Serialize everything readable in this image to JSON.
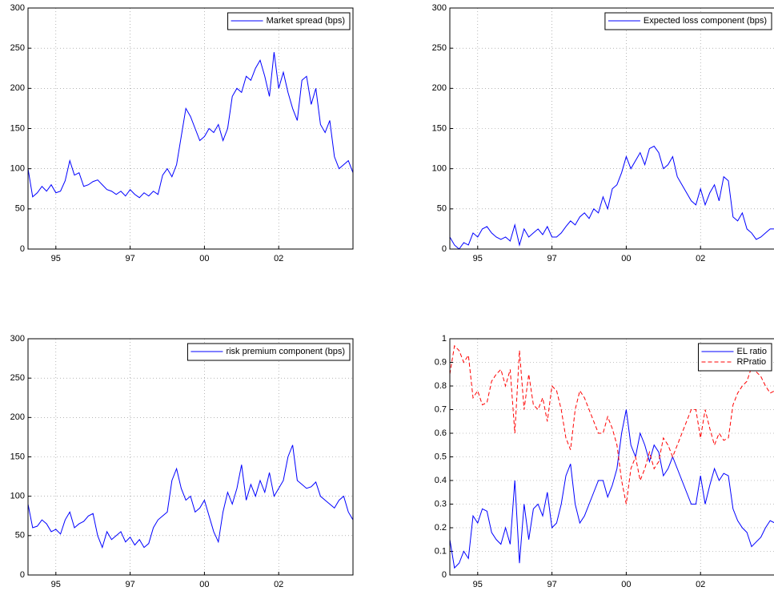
{
  "chart_data": [
    {
      "type": "line",
      "legend": "northeast",
      "grid": true,
      "xlim": [
        0,
        140
      ],
      "xticks": [
        {
          "value": 12,
          "label": "95"
        },
        {
          "value": 44,
          "label": "97"
        },
        {
          "value": 76,
          "label": "00"
        },
        {
          "value": 108,
          "label": "02"
        }
      ],
      "ylim": [
        0,
        300
      ],
      "yticks": [
        0,
        50,
        100,
        150,
        200,
        250,
        300
      ],
      "x": [
        0,
        2,
        4,
        6,
        8,
        10,
        12,
        14,
        16,
        18,
        20,
        22,
        24,
        26,
        28,
        30,
        32,
        34,
        36,
        38,
        40,
        42,
        44,
        46,
        48,
        50,
        52,
        54,
        56,
        58,
        60,
        62,
        64,
        66,
        68,
        70,
        72,
        74,
        76,
        78,
        80,
        82,
        84,
        86,
        88,
        90,
        92,
        94,
        96,
        98,
        100,
        102,
        104,
        106,
        108,
        110,
        112,
        114,
        116,
        118,
        120,
        122,
        124,
        126,
        128,
        130,
        132,
        134,
        136,
        138,
        140
      ],
      "series": [
        {
          "name": "Market spread (bps)",
          "color": "#0000ff",
          "linestyle": "solid",
          "values": [
            100,
            65,
            70,
            78,
            72,
            80,
            70,
            72,
            85,
            110,
            92,
            95,
            78,
            80,
            84,
            86,
            80,
            74,
            72,
            68,
            72,
            66,
            74,
            68,
            64,
            70,
            66,
            72,
            68,
            92,
            100,
            90,
            105,
            140,
            175,
            165,
            150,
            135,
            140,
            150,
            145,
            155,
            135,
            150,
            190,
            200,
            195,
            215,
            210,
            225,
            235,
            215,
            190,
            245,
            200,
            220,
            195,
            175,
            160,
            210,
            215,
            180,
            200,
            155,
            145,
            160,
            115,
            100,
            105,
            110,
            95
          ]
        }
      ]
    },
    {
      "type": "line",
      "legend": "northeast",
      "grid": true,
      "xlim": [
        0,
        140
      ],
      "xticks": [
        {
          "value": 12,
          "label": "95"
        },
        {
          "value": 44,
          "label": "97"
        },
        {
          "value": 76,
          "label": "00"
        },
        {
          "value": 108,
          "label": "02"
        }
      ],
      "ylim": [
        0,
        300
      ],
      "yticks": [
        0,
        50,
        100,
        150,
        200,
        250,
        300
      ],
      "x": [
        0,
        2,
        4,
        6,
        8,
        10,
        12,
        14,
        16,
        18,
        20,
        22,
        24,
        26,
        28,
        30,
        32,
        34,
        36,
        38,
        40,
        42,
        44,
        46,
        48,
        50,
        52,
        54,
        56,
        58,
        60,
        62,
        64,
        66,
        68,
        70,
        72,
        74,
        76,
        78,
        80,
        82,
        84,
        86,
        88,
        90,
        92,
        94,
        96,
        98,
        100,
        102,
        104,
        106,
        108,
        110,
        112,
        114,
        116,
        118,
        120,
        122,
        124,
        126,
        128,
        130,
        132,
        134,
        136,
        138,
        140
      ],
      "series": [
        {
          "name": "Expected loss component (bps)",
          "color": "#0000ff",
          "linestyle": "solid",
          "values": [
            15,
            5,
            0,
            8,
            5,
            20,
            15,
            25,
            28,
            20,
            15,
            12,
            15,
            10,
            30,
            5,
            25,
            15,
            20,
            25,
            18,
            28,
            15,
            15,
            20,
            28,
            35,
            30,
            40,
            45,
            38,
            50,
            45,
            65,
            50,
            75,
            80,
            95,
            115,
            100,
            110,
            120,
            105,
            125,
            128,
            120,
            100,
            105,
            115,
            90,
            80,
            70,
            60,
            55,
            75,
            55,
            70,
            80,
            60,
            90,
            85,
            40,
            35,
            45,
            25,
            20,
            12,
            15,
            20,
            25,
            25
          ]
        }
      ]
    },
    {
      "type": "line",
      "legend": "northeast",
      "grid": true,
      "xlim": [
        0,
        140
      ],
      "xticks": [
        {
          "value": 12,
          "label": "95"
        },
        {
          "value": 44,
          "label": "97"
        },
        {
          "value": 76,
          "label": "00"
        },
        {
          "value": 108,
          "label": "02"
        }
      ],
      "ylim": [
        0,
        300
      ],
      "yticks": [
        0,
        50,
        100,
        150,
        200,
        250,
        300
      ],
      "x": [
        0,
        2,
        4,
        6,
        8,
        10,
        12,
        14,
        16,
        18,
        20,
        22,
        24,
        26,
        28,
        30,
        32,
        34,
        36,
        38,
        40,
        42,
        44,
        46,
        48,
        50,
        52,
        54,
        56,
        58,
        60,
        62,
        64,
        66,
        68,
        70,
        72,
        74,
        76,
        78,
        80,
        82,
        84,
        86,
        88,
        90,
        92,
        94,
        96,
        98,
        100,
        102,
        104,
        106,
        108,
        110,
        112,
        114,
        116,
        118,
        120,
        122,
        124,
        126,
        128,
        130,
        132,
        134,
        136,
        138,
        140
      ],
      "series": [
        {
          "name": "risk premium component (bps)",
          "color": "#0000ff",
          "linestyle": "solid",
          "values": [
            90,
            60,
            62,
            70,
            65,
            55,
            58,
            52,
            70,
            80,
            60,
            65,
            68,
            75,
            78,
            50,
            35,
            55,
            45,
            50,
            55,
            42,
            48,
            38,
            45,
            35,
            40,
            60,
            70,
            75,
            80,
            120,
            135,
            110,
            95,
            100,
            80,
            85,
            95,
            75,
            55,
            42,
            80,
            105,
            90,
            110,
            140,
            95,
            115,
            100,
            120,
            105,
            130,
            100,
            110,
            120,
            150,
            165,
            120,
            115,
            110,
            112,
            118,
            100,
            95,
            90,
            85,
            95,
            100,
            80,
            70
          ]
        }
      ]
    },
    {
      "type": "line",
      "legend": "northeast",
      "grid": true,
      "xlim": [
        0,
        140
      ],
      "xticks": [
        {
          "value": 12,
          "label": "95"
        },
        {
          "value": 44,
          "label": "97"
        },
        {
          "value": 76,
          "label": "00"
        },
        {
          "value": 108,
          "label": "02"
        }
      ],
      "ylim": [
        0,
        1
      ],
      "yticks": [
        0,
        0.1,
        0.2,
        0.3,
        0.4,
        0.5,
        0.6,
        0.7,
        0.8,
        0.9,
        1
      ],
      "x": [
        0,
        2,
        4,
        6,
        8,
        10,
        12,
        14,
        16,
        18,
        20,
        22,
        24,
        26,
        28,
        30,
        32,
        34,
        36,
        38,
        40,
        42,
        44,
        46,
        48,
        50,
        52,
        54,
        56,
        58,
        60,
        62,
        64,
        66,
        68,
        70,
        72,
        74,
        76,
        78,
        80,
        82,
        84,
        86,
        88,
        90,
        92,
        94,
        96,
        98,
        100,
        102,
        104,
        106,
        108,
        110,
        112,
        114,
        116,
        118,
        120,
        122,
        124,
        126,
        128,
        130,
        132,
        134,
        136,
        138,
        140
      ],
      "series": [
        {
          "name": "EL ratio",
          "color": "#0000ff",
          "linestyle": "solid",
          "values": [
            0.15,
            0.03,
            0.05,
            0.1,
            0.07,
            0.25,
            0.22,
            0.28,
            0.27,
            0.18,
            0.15,
            0.13,
            0.2,
            0.13,
            0.4,
            0.05,
            0.3,
            0.15,
            0.28,
            0.3,
            0.25,
            0.35,
            0.2,
            0.22,
            0.3,
            0.42,
            0.47,
            0.3,
            0.22,
            0.25,
            0.3,
            0.35,
            0.4,
            0.4,
            0.33,
            0.38,
            0.45,
            0.6,
            0.7,
            0.55,
            0.5,
            0.6,
            0.55,
            0.48,
            0.55,
            0.52,
            0.42,
            0.45,
            0.5,
            0.45,
            0.4,
            0.35,
            0.3,
            0.3,
            0.42,
            0.3,
            0.38,
            0.45,
            0.4,
            0.43,
            0.42,
            0.28,
            0.23,
            0.2,
            0.18,
            0.12,
            0.14,
            0.16,
            0.2,
            0.23,
            0.22
          ]
        },
        {
          "name": "RPratio",
          "color": "#ff0000",
          "linestyle": "dashed",
          "values": [
            0.85,
            0.97,
            0.95,
            0.9,
            0.93,
            0.75,
            0.78,
            0.72,
            0.73,
            0.82,
            0.85,
            0.87,
            0.8,
            0.87,
            0.6,
            0.95,
            0.7,
            0.85,
            0.72,
            0.7,
            0.75,
            0.65,
            0.8,
            0.78,
            0.7,
            0.58,
            0.53,
            0.7,
            0.78,
            0.75,
            0.7,
            0.65,
            0.6,
            0.6,
            0.67,
            0.62,
            0.55,
            0.4,
            0.3,
            0.45,
            0.5,
            0.4,
            0.45,
            0.52,
            0.45,
            0.48,
            0.58,
            0.55,
            0.5,
            0.55,
            0.6,
            0.65,
            0.7,
            0.7,
            0.58,
            0.7,
            0.62,
            0.55,
            0.6,
            0.57,
            0.58,
            0.72,
            0.77,
            0.8,
            0.82,
            0.88,
            0.86,
            0.84,
            0.8,
            0.77,
            0.78
          ]
        }
      ]
    }
  ]
}
